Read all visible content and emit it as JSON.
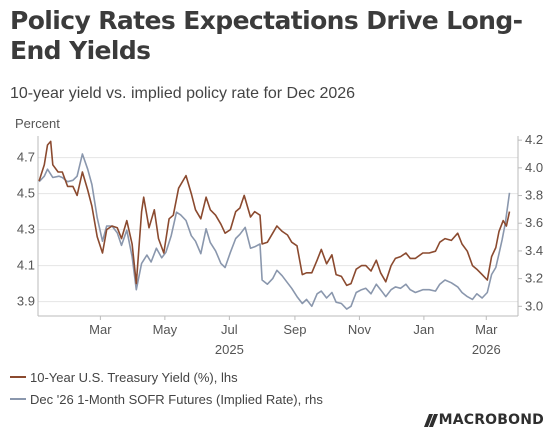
{
  "chart_data": {
    "type": "line",
    "title": "Policy Rates Expectations Drive Long-End Yields",
    "subtitle": "10-year yield vs. implied policy rate for Dec 2026",
    "unit_label": "Percent",
    "x_range": [
      "2025-01-01",
      "2026-03-31"
    ],
    "x_ticks": [
      {
        "date": "2025-03-01",
        "label": "Mar"
      },
      {
        "date": "2025-05-01",
        "label": "May"
      },
      {
        "date": "2025-07-01",
        "label": "Jul"
      },
      {
        "date": "2025-09-01",
        "label": "Sep"
      },
      {
        "date": "2025-11-01",
        "label": "Nov"
      },
      {
        "date": "2026-01-01",
        "label": "Jan"
      },
      {
        "date": "2026-03-01",
        "label": "Mar"
      }
    ],
    "year_labels": [
      {
        "date": "2025-07-01",
        "label": "2025"
      },
      {
        "date": "2026-03-01",
        "label": "2026"
      }
    ],
    "y_left": {
      "range": [
        3.82,
        4.82
      ],
      "ticks": [
        3.9,
        4.1,
        4.3,
        4.5,
        4.7
      ],
      "tick_labels": [
        "3.9",
        "4.1",
        "4.3",
        "4.5",
        "4.7"
      ]
    },
    "y_right": {
      "range": [
        2.93,
        4.23
      ],
      "ticks": [
        3.0,
        3.2,
        3.4,
        3.6,
        3.8,
        4.0,
        4.2
      ],
      "tick_labels": [
        "3.0",
        "3.2",
        "3.4",
        "3.6",
        "3.8",
        "4.0",
        "4.2"
      ]
    },
    "grid": true,
    "legend_position": "bottom-left",
    "series": [
      {
        "name": "10-Year U.S. Treasury Yield (%), lhs",
        "axis": "left",
        "color": "#8b4a2f",
        "points": [
          [
            "2025-01-02",
            4.57
          ],
          [
            "2025-01-07",
            4.66
          ],
          [
            "2025-01-10",
            4.77
          ],
          [
            "2025-01-13",
            4.79
          ],
          [
            "2025-01-15",
            4.66
          ],
          [
            "2025-01-20",
            4.62
          ],
          [
            "2025-01-24",
            4.62
          ],
          [
            "2025-01-29",
            4.54
          ],
          [
            "2025-02-03",
            4.54
          ],
          [
            "2025-02-07",
            4.49
          ],
          [
            "2025-02-12",
            4.62
          ],
          [
            "2025-02-17",
            4.52
          ],
          [
            "2025-02-21",
            4.43
          ],
          [
            "2025-02-26",
            4.26
          ],
          [
            "2025-03-03",
            4.17
          ],
          [
            "2025-03-07",
            4.3
          ],
          [
            "2025-03-12",
            4.32
          ],
          [
            "2025-03-17",
            4.31
          ],
          [
            "2025-03-21",
            4.25
          ],
          [
            "2025-03-26",
            4.35
          ],
          [
            "2025-03-31",
            4.22
          ],
          [
            "2025-04-04",
            4.0
          ],
          [
            "2025-04-09",
            4.4
          ],
          [
            "2025-04-11",
            4.48
          ],
          [
            "2025-04-16",
            4.31
          ],
          [
            "2025-04-21",
            4.41
          ],
          [
            "2025-04-25",
            4.25
          ],
          [
            "2025-04-30",
            4.17
          ],
          [
            "2025-05-05",
            4.36
          ],
          [
            "2025-05-09",
            4.38
          ],
          [
            "2025-05-14",
            4.53
          ],
          [
            "2025-05-21",
            4.6
          ],
          [
            "2025-05-26",
            4.5
          ],
          [
            "2025-05-30",
            4.41
          ],
          [
            "2025-06-04",
            4.36
          ],
          [
            "2025-06-09",
            4.48
          ],
          [
            "2025-06-13",
            4.41
          ],
          [
            "2025-06-18",
            4.38
          ],
          [
            "2025-06-23",
            4.33
          ],
          [
            "2025-06-27",
            4.28
          ],
          [
            "2025-07-02",
            4.3
          ],
          [
            "2025-07-07",
            4.4
          ],
          [
            "2025-07-11",
            4.42
          ],
          [
            "2025-07-15",
            4.49
          ],
          [
            "2025-07-21",
            4.37
          ],
          [
            "2025-07-25",
            4.4
          ],
          [
            "2025-07-30",
            4.38
          ],
          [
            "2025-08-01",
            4.22
          ],
          [
            "2025-08-06",
            4.23
          ],
          [
            "2025-08-11",
            4.28
          ],
          [
            "2025-08-15",
            4.32
          ],
          [
            "2025-08-20",
            4.29
          ],
          [
            "2025-08-25",
            4.27
          ],
          [
            "2025-08-29",
            4.23
          ],
          [
            "2025-09-03",
            4.21
          ],
          [
            "2025-09-08",
            4.05
          ],
          [
            "2025-09-12",
            4.06
          ],
          [
            "2025-09-17",
            4.06
          ],
          [
            "2025-09-22",
            4.13
          ],
          [
            "2025-09-26",
            4.19
          ],
          [
            "2025-10-01",
            4.11
          ],
          [
            "2025-10-06",
            4.16
          ],
          [
            "2025-10-10",
            4.05
          ],
          [
            "2025-10-15",
            4.04
          ],
          [
            "2025-10-20",
            3.99
          ],
          [
            "2025-10-24",
            4.0
          ],
          [
            "2025-10-29",
            4.08
          ],
          [
            "2025-11-03",
            4.1
          ],
          [
            "2025-11-07",
            4.1
          ],
          [
            "2025-11-12",
            4.07
          ],
          [
            "2025-11-17",
            4.13
          ],
          [
            "2025-11-21",
            4.06
          ],
          [
            "2025-11-26",
            4.01
          ],
          [
            "2025-12-01",
            4.1
          ],
          [
            "2025-12-05",
            4.14
          ],
          [
            "2025-12-10",
            4.15
          ],
          [
            "2025-12-15",
            4.17
          ],
          [
            "2025-12-19",
            4.14
          ],
          [
            "2025-12-24",
            4.14
          ],
          [
            "2025-12-31",
            4.17
          ],
          [
            "2026-01-06",
            4.17
          ],
          [
            "2026-01-12",
            4.18
          ],
          [
            "2026-01-16",
            4.23
          ],
          [
            "2026-01-21",
            4.25
          ],
          [
            "2026-01-27",
            4.24
          ],
          [
            "2026-02-02",
            4.28
          ],
          [
            "2026-02-06",
            4.22
          ],
          [
            "2026-02-11",
            4.18
          ],
          [
            "2026-02-16",
            4.1
          ],
          [
            "2026-02-20",
            4.08
          ],
          [
            "2026-02-25",
            4.05
          ],
          [
            "2026-03-02",
            4.02
          ],
          [
            "2026-03-06",
            4.15
          ],
          [
            "2026-03-10",
            4.2
          ],
          [
            "2026-03-13",
            4.29
          ],
          [
            "2026-03-17",
            4.35
          ],
          [
            "2026-03-20",
            4.32
          ],
          [
            "2026-03-23",
            4.4
          ]
        ]
      },
      {
        "name": "Dec '26 1-Month SOFR Futures (Implied Rate), rhs",
        "axis": "right",
        "color": "#8a97ad",
        "points": [
          [
            "2025-01-02",
            3.9
          ],
          [
            "2025-01-07",
            3.94
          ],
          [
            "2025-01-10",
            3.99
          ],
          [
            "2025-01-15",
            3.93
          ],
          [
            "2025-01-21",
            3.94
          ],
          [
            "2025-01-24",
            3.93
          ],
          [
            "2025-01-29",
            3.9
          ],
          [
            "2025-02-03",
            3.91
          ],
          [
            "2025-02-07",
            3.94
          ],
          [
            "2025-02-12",
            4.1
          ],
          [
            "2025-02-17",
            3.99
          ],
          [
            "2025-02-21",
            3.88
          ],
          [
            "2025-02-26",
            3.64
          ],
          [
            "2025-03-03",
            3.47
          ],
          [
            "2025-03-07",
            3.58
          ],
          [
            "2025-03-12",
            3.58
          ],
          [
            "2025-03-17",
            3.53
          ],
          [
            "2025-03-21",
            3.44
          ],
          [
            "2025-03-26",
            3.55
          ],
          [
            "2025-03-31",
            3.36
          ],
          [
            "2025-04-04",
            3.12
          ],
          [
            "2025-04-09",
            3.31
          ],
          [
            "2025-04-14",
            3.37
          ],
          [
            "2025-04-18",
            3.32
          ],
          [
            "2025-04-23",
            3.42
          ],
          [
            "2025-04-28",
            3.35
          ],
          [
            "2025-05-02",
            3.39
          ],
          [
            "2025-05-07",
            3.51
          ],
          [
            "2025-05-12",
            3.68
          ],
          [
            "2025-05-16",
            3.66
          ],
          [
            "2025-05-21",
            3.62
          ],
          [
            "2025-05-26",
            3.51
          ],
          [
            "2025-05-30",
            3.47
          ],
          [
            "2025-06-04",
            3.38
          ],
          [
            "2025-06-09",
            3.56
          ],
          [
            "2025-06-13",
            3.46
          ],
          [
            "2025-06-18",
            3.4
          ],
          [
            "2025-06-23",
            3.31
          ],
          [
            "2025-06-27",
            3.28
          ],
          [
            "2025-07-02",
            3.39
          ],
          [
            "2025-07-07",
            3.49
          ],
          [
            "2025-07-11",
            3.52
          ],
          [
            "2025-07-16",
            3.57
          ],
          [
            "2025-07-21",
            3.42
          ],
          [
            "2025-07-25",
            3.43
          ],
          [
            "2025-07-30",
            3.45
          ],
          [
            "2025-08-01",
            3.19
          ],
          [
            "2025-08-06",
            3.16
          ],
          [
            "2025-08-11",
            3.2
          ],
          [
            "2025-08-15",
            3.26
          ],
          [
            "2025-08-20",
            3.22
          ],
          [
            "2025-08-25",
            3.17
          ],
          [
            "2025-08-29",
            3.13
          ],
          [
            "2025-09-03",
            3.07
          ],
          [
            "2025-09-08",
            3.02
          ],
          [
            "2025-09-12",
            3.05
          ],
          [
            "2025-09-17",
            3.0
          ],
          [
            "2025-09-22",
            3.09
          ],
          [
            "2025-09-26",
            3.11
          ],
          [
            "2025-10-01",
            3.06
          ],
          [
            "2025-10-06",
            3.1
          ],
          [
            "2025-10-10",
            3.03
          ],
          [
            "2025-10-15",
            3.02
          ],
          [
            "2025-10-20",
            2.98
          ],
          [
            "2025-10-24",
            3.0
          ],
          [
            "2025-10-29",
            3.1
          ],
          [
            "2025-11-03",
            3.12
          ],
          [
            "2025-11-07",
            3.13
          ],
          [
            "2025-11-12",
            3.09
          ],
          [
            "2025-11-17",
            3.16
          ],
          [
            "2025-11-21",
            3.12
          ],
          [
            "2025-11-26",
            3.07
          ],
          [
            "2025-12-01",
            3.12
          ],
          [
            "2025-12-05",
            3.14
          ],
          [
            "2025-12-10",
            3.13
          ],
          [
            "2025-12-15",
            3.16
          ],
          [
            "2025-12-19",
            3.12
          ],
          [
            "2025-12-24",
            3.1
          ],
          [
            "2025-12-31",
            3.12
          ],
          [
            "2026-01-06",
            3.12
          ],
          [
            "2026-01-12",
            3.11
          ],
          [
            "2026-01-16",
            3.16
          ],
          [
            "2026-01-21",
            3.19
          ],
          [
            "2026-01-27",
            3.17
          ],
          [
            "2026-02-02",
            3.14
          ],
          [
            "2026-02-06",
            3.1
          ],
          [
            "2026-02-11",
            3.07
          ],
          [
            "2026-02-16",
            3.05
          ],
          [
            "2026-02-20",
            3.09
          ],
          [
            "2026-02-25",
            3.06
          ],
          [
            "2026-03-02",
            3.1
          ],
          [
            "2026-03-06",
            3.23
          ],
          [
            "2026-03-10",
            3.28
          ],
          [
            "2026-03-13",
            3.38
          ],
          [
            "2026-03-16",
            3.48
          ],
          [
            "2026-03-19",
            3.6
          ],
          [
            "2026-03-23",
            3.82
          ]
        ]
      }
    ]
  },
  "brand": {
    "logo_text": "MACROBOND"
  }
}
